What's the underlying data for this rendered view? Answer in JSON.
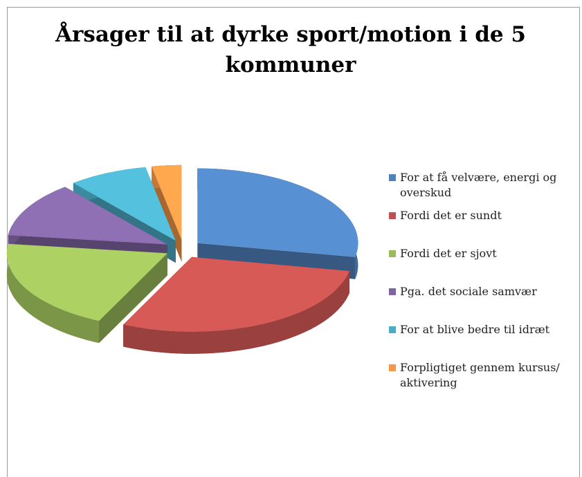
{
  "chart_data": {
    "type": "pie",
    "title": "Årsager til at dyrke sport/motion i de 5 kommuner",
    "categories": [
      "For at få velvære, energi og overskud",
      "Fordi det er sundt",
      "Fordi det er sjovt",
      "Pga. det sociale samvær",
      "For at blive bedre til idræt",
      "Forpligtiget gennem kursus/ aktivering"
    ],
    "values": [
      28,
      29,
      20,
      12,
      8,
      3
    ],
    "colors": [
      "#4f81bd",
      "#c0504d",
      "#9bbb59",
      "#8064a2",
      "#4bacc6",
      "#f79646"
    ],
    "legend": "right"
  }
}
